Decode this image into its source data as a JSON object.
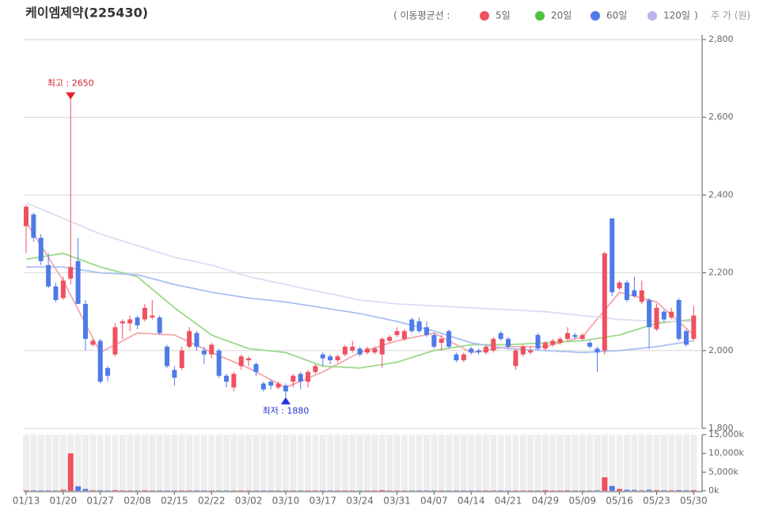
{
  "chart_data": {
    "type": "candlestick",
    "title": "케이엠제약(225430)",
    "legend_title": "( 이동평균선  :",
    "legend_end": ")",
    "y_label": "주 가 (원)",
    "annotations": [
      "최고 : 2650",
      "최저 : 1880"
    ],
    "up_color": "#f0505f",
    "down_color": "#4f7be8",
    "categories": [
      "01/13",
      null,
      null,
      null,
      null,
      "01/20",
      null,
      null,
      null,
      null,
      "01/27",
      null,
      null,
      null,
      null,
      "02/08",
      null,
      null,
      null,
      null,
      "02/15",
      null,
      null,
      null,
      null,
      "02/22",
      null,
      null,
      null,
      null,
      "03/02",
      null,
      null,
      null,
      null,
      "03/10",
      null,
      null,
      null,
      null,
      "03/17",
      null,
      null,
      null,
      null,
      "03/24",
      null,
      null,
      null,
      null,
      "03/31",
      null,
      null,
      null,
      null,
      "04/07",
      null,
      null,
      null,
      null,
      "04/14",
      null,
      null,
      null,
      null,
      "04/21",
      null,
      null,
      null,
      null,
      "04/29",
      null,
      null,
      null,
      null,
      "05/09",
      null,
      null,
      null,
      null,
      "05/16",
      null,
      null,
      null,
      null,
      "05/23",
      null,
      null,
      null,
      null,
      "05/30"
    ],
    "open": [
      2320,
      2350,
      2290,
      2220,
      2165,
      2135,
      2185,
      2230,
      2120,
      2015,
      2025,
      1955,
      1990,
      2070,
      2070,
      2085,
      2080,
      2085,
      2085,
      2010,
      1950,
      1955,
      2010,
      2045,
      2000,
      1990,
      2000,
      1935,
      1905,
      1960,
      1975,
      1965,
      1915,
      1920,
      1905,
      1910,
      1920,
      1940,
      1920,
      1945,
      1990,
      1985,
      1975,
      1990,
      2000,
      2005,
      1995,
      1995,
      1990,
      2025,
      2040,
      2030,
      2080,
      2075,
      2060,
      2040,
      2020,
      2050,
      1990,
      1975,
      2005,
      2000,
      1995,
      2000,
      2045,
      2030,
      1960,
      1990,
      1995,
      2040,
      2005,
      2015,
      2020,
      2030,
      2040,
      2030,
      2020,
      2005,
      2000,
      2340,
      2160,
      2175,
      2155,
      2125,
      2130,
      2055,
      2100,
      2085,
      2130,
      2050,
      2030
    ],
    "high": [
      2375,
      2355,
      2300,
      2250,
      2175,
      2190,
      2650,
      2290,
      2130,
      2030,
      2030,
      1960,
      2070,
      2080,
      2090,
      2090,
      2120,
      2130,
      2090,
      2015,
      1960,
      2010,
      2060,
      2050,
      2010,
      2020,
      2005,
      1940,
      1945,
      1990,
      1985,
      1970,
      1920,
      1925,
      1920,
      1915,
      1940,
      1945,
      1950,
      1965,
      1995,
      1990,
      1990,
      2015,
      2025,
      2010,
      2010,
      2010,
      2035,
      2040,
      2060,
      2055,
      2085,
      2085,
      2075,
      2045,
      2040,
      2055,
      1995,
      1995,
      2010,
      2005,
      2015,
      2035,
      2050,
      2035,
      2005,
      2015,
      2010,
      2045,
      2025,
      2030,
      2035,
      2060,
      2045,
      2045,
      2025,
      2010,
      2255,
      2340,
      2180,
      2180,
      2190,
      2180,
      2135,
      2120,
      2105,
      2110,
      2135,
      2055,
      2115
    ],
    "low": [
      2250,
      2280,
      2220,
      2160,
      2125,
      2130,
      2170,
      2120,
      2000,
      2010,
      1915,
      1920,
      1985,
      2030,
      2050,
      2055,
      2075,
      2080,
      2040,
      1955,
      1910,
      1950,
      2005,
      2000,
      1965,
      1980,
      1930,
      1905,
      1895,
      1950,
      1960,
      1935,
      1895,
      1900,
      1900,
      1880,
      1905,
      1900,
      1905,
      1940,
      1960,
      1965,
      1970,
      1985,
      1995,
      1985,
      1990,
      1990,
      1955,
      2020,
      2035,
      2025,
      2045,
      2045,
      2035,
      2005,
      2000,
      2005,
      1970,
      1970,
      1990,
      1990,
      1990,
      1995,
      2025,
      2005,
      1950,
      1985,
      1990,
      2000,
      2000,
      2010,
      2015,
      2025,
      2030,
      2025,
      2005,
      1945,
      1990,
      2140,
      2155,
      2125,
      2135,
      2120,
      2005,
      2050,
      2075,
      2080,
      2025,
      2010,
      2025
    ],
    "close": [
      2370,
      2290,
      2230,
      2165,
      2130,
      2180,
      2215,
      2120,
      2030,
      2025,
      1920,
      1935,
      2060,
      2075,
      2080,
      2065,
      2110,
      2090,
      2045,
      1960,
      1930,
      2000,
      2050,
      2010,
      1990,
      2015,
      1935,
      1920,
      1940,
      1985,
      1980,
      1945,
      1900,
      1910,
      1915,
      1895,
      1935,
      1920,
      1945,
      1960,
      1980,
      1975,
      1985,
      2010,
      2010,
      1990,
      2005,
      2005,
      2030,
      2035,
      2050,
      2050,
      2050,
      2050,
      2040,
      2010,
      2030,
      2010,
      1975,
      1990,
      1995,
      1995,
      2010,
      2030,
      2030,
      2010,
      2000,
      2010,
      2000,
      2005,
      2020,
      2025,
      2030,
      2045,
      2035,
      2040,
      2010,
      1995,
      2250,
      2150,
      2175,
      2130,
      2140,
      2155,
      2060,
      2110,
      2080,
      2100,
      2030,
      2015,
      2090
    ],
    "volume": [
      150,
      150,
      120,
      120,
      100,
      300,
      10000,
      1200,
      500,
      150,
      150,
      100,
      200,
      120,
      100,
      100,
      150,
      120,
      100,
      100,
      100,
      100,
      120,
      100,
      100,
      100,
      100,
      100,
      100,
      120,
      100,
      100,
      100,
      100,
      100,
      100,
      100,
      100,
      100,
      100,
      100,
      100,
      100,
      100,
      100,
      100,
      100,
      100,
      200,
      100,
      100,
      100,
      100,
      100,
      100,
      100,
      100,
      100,
      100,
      100,
      100,
      100,
      100,
      100,
      100,
      100,
      100,
      100,
      100,
      100,
      200,
      100,
      100,
      150,
      100,
      100,
      100,
      150,
      3600,
      1300,
      500,
      300,
      250,
      150,
      300,
      200,
      150,
      150,
      200,
      150,
      200
    ],
    "ylim": [
      1800,
      2800
    ],
    "yticks": [
      {
        "value": 1800,
        "label": "1,800"
      },
      {
        "value": 2000,
        "label": "2,000"
      },
      {
        "value": 2200,
        "label": "2,200"
      },
      {
        "value": 2400,
        "label": "2,400"
      },
      {
        "value": 2600,
        "label": "2,600"
      },
      {
        "value": 2800,
        "label": "2,800"
      }
    ],
    "vlim": [
      0,
      15000
    ],
    "vticks": [
      {
        "value": 0,
        "label": "0k"
      },
      {
        "value": 5000,
        "label": "5,000k"
      },
      {
        "value": 10000,
        "label": "10,000k"
      },
      {
        "value": 15000,
        "label": "15,000k"
      }
    ],
    "series": [
      {
        "name": "5일",
        "color": "#f0505f",
        "line_color": "#f4a7ae",
        "x": [
          0,
          5,
          10,
          15,
          20,
          25,
          30,
          35,
          40,
          45,
          50,
          55,
          60,
          65,
          70,
          75,
          80,
          85,
          90
        ],
        "values": [
          2330,
          2180,
          1995,
          2045,
          2040,
          1995,
          1955,
          1905,
          1945,
          1995,
          2025,
          2045,
          1995,
          2010,
          2010,
          2035,
          2150,
          2125,
          2040
        ]
      },
      {
        "name": "20일",
        "color": "#4cc43c",
        "line_color": "#9bd98a",
        "x": [
          0,
          5,
          10,
          15,
          20,
          25,
          30,
          35,
          40,
          45,
          50,
          55,
          60,
          65,
          70,
          75,
          80,
          85,
          90
        ],
        "values": [
          2235,
          2250,
          2215,
          2190,
          2110,
          2040,
          2005,
          1995,
          1960,
          1955,
          1970,
          2000,
          2015,
          2015,
          2020,
          2025,
          2040,
          2070,
          2080
        ]
      },
      {
        "name": "60일",
        "color": "#4f7be8",
        "line_color": "#a9c0f2",
        "x": [
          0,
          5,
          10,
          15,
          20,
          25,
          30,
          35,
          40,
          45,
          50,
          55,
          60,
          65,
          70,
          75,
          80,
          85,
          90
        ],
        "values": [
          2215,
          2215,
          2200,
          2195,
          2170,
          2150,
          2135,
          2125,
          2110,
          2095,
          2075,
          2050,
          2020,
          2005,
          2000,
          1995,
          2000,
          2010,
          2025
        ]
      },
      {
        "name": "120일",
        "color": "#b9b4ee",
        "line_color": "#dddcf5",
        "x": [
          0,
          5,
          10,
          15,
          20,
          25,
          30,
          35,
          40,
          45,
          50,
          55,
          60,
          65,
          70,
          75,
          80,
          85,
          90
        ],
        "values": [
          2380,
          2340,
          2300,
          2270,
          2240,
          2220,
          2190,
          2170,
          2150,
          2130,
          2120,
          2115,
          2110,
          2105,
          2100,
          2090,
          2080,
          2075,
          2075
        ]
      }
    ]
  }
}
